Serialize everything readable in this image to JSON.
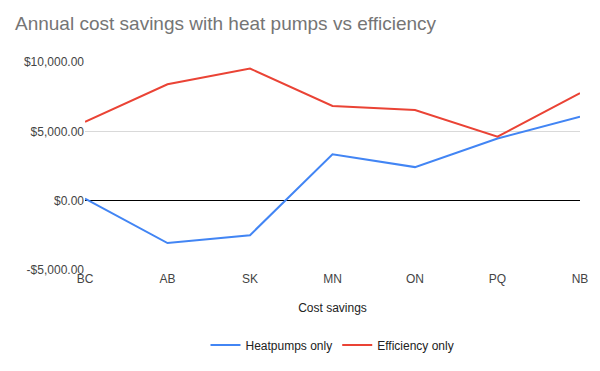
{
  "chart_data": {
    "type": "line",
    "title": "Annual cost savings with heat pumps vs efficiency",
    "x_label": "Cost savings",
    "categories": [
      "BC",
      "AB",
      "SK",
      "MN",
      "ON",
      "PQ",
      "NB"
    ],
    "series": [
      {
        "name": "Heatpumps only",
        "color": "#4285f4",
        "values": [
          150,
          -3060,
          -2490,
          3340,
          2420,
          4480,
          6050
        ]
      },
      {
        "name": "Efficiency only",
        "color": "#ea4335",
        "values": [
          5690,
          8390,
          9530,
          6830,
          6540,
          4620,
          7750
        ]
      }
    ],
    "ylim": [
      -5000,
      10000
    ],
    "yticks": [
      {
        "value": -5000,
        "label": "-$5,000.00"
      },
      {
        "value": 0,
        "label": "$0.00"
      },
      {
        "value": 5000,
        "label": "$5,000.00"
      },
      {
        "value": 10000,
        "label": "$10,000.00"
      }
    ],
    "grid": true,
    "legend": "bottom"
  }
}
